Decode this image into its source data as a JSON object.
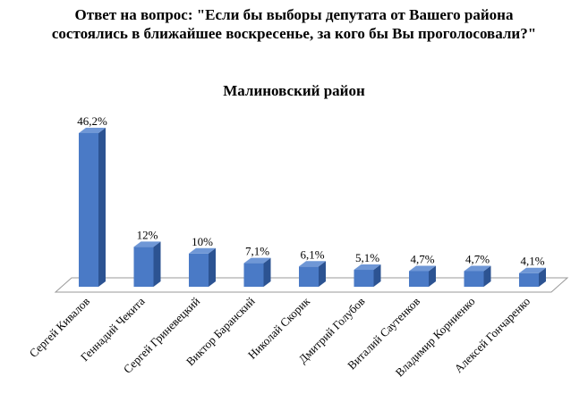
{
  "title": "Ответ на вопрос: \"Если бы выборы депутата от Вашего района состоялись в ближайшее воскресенье, за кого бы Вы проголосовали?\"",
  "colors": {
    "bar_front": "#4a7ac6",
    "bar_side": "#2c5392",
    "bar_top": "#6f97d6",
    "floor": "#ffffff",
    "floor_edge": "#9a9a9a"
  },
  "chart_data": {
    "type": "bar",
    "title": "Малиновский район",
    "categories": [
      "Сергей Кивалов",
      "Геннадий Чекита",
      "Сергей Гриневецкий",
      "Виктор Баранский",
      "Николай Скорик",
      "Дмитрий Голубов",
      "Виталий Саутенков",
      "Владимир Корниенко",
      "Алексей Гончаренко"
    ],
    "values": [
      46.2,
      12,
      10,
      7.1,
      6.1,
      5.1,
      4.7,
      4.7,
      4.1
    ],
    "data_labels": [
      "46,2%",
      "12%",
      "10%",
      "7,1%",
      "6,1%",
      "5,1%",
      "4,7%",
      "4,7%",
      "4,1%"
    ],
    "grid": false,
    "legend": "none"
  }
}
